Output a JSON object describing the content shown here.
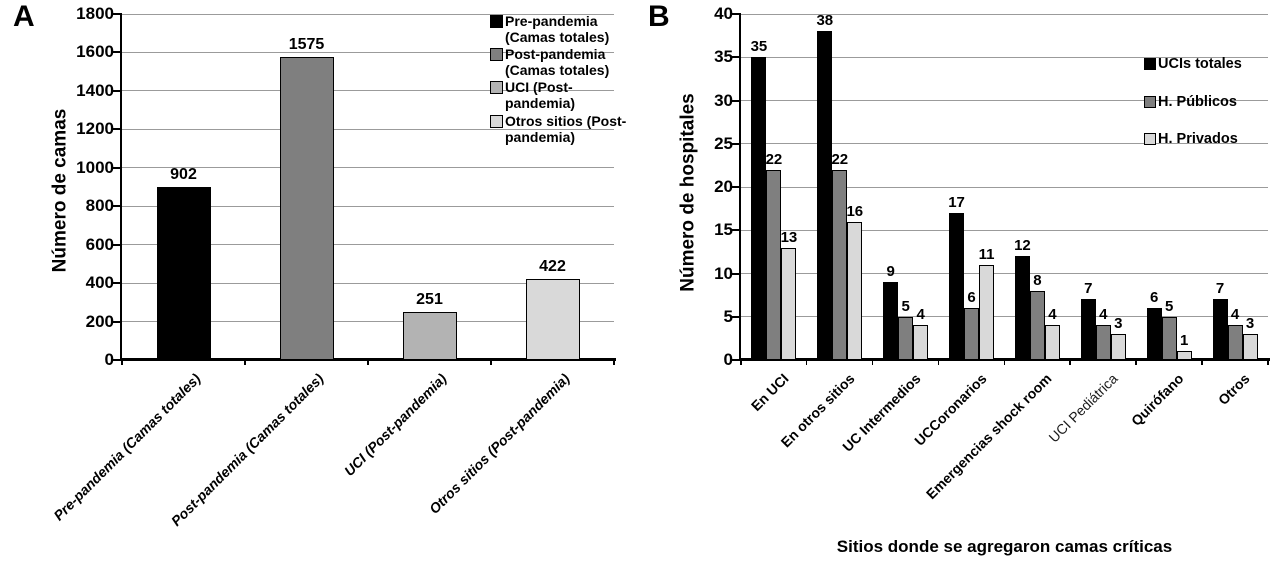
{
  "figure": {
    "background": "#ffffff",
    "text_color": "#000000",
    "gridline_color": "#9b9b9b",
    "axis_color": "#000000"
  },
  "chart_data": [
    {
      "type": "bar",
      "panel_label": "A",
      "title": "",
      "ylabel": "Número de camas",
      "xlabel": "",
      "ylim": [
        0,
        1800
      ],
      "yticks": [
        0,
        200,
        400,
        600,
        800,
        1000,
        1200,
        1400,
        1600,
        1800
      ],
      "grid": true,
      "legend_position": "top-right",
      "categories": [
        "Pre-pandemia (Camas totales)",
        "Post-pandemia (Camas totales)",
        "UCI (Post-pandemia)",
        "Otros sitios (Post-pandemia)"
      ],
      "values": [
        902,
        1575,
        251,
        422
      ],
      "bar_colors": [
        "#000000",
        "#7f7f7f",
        "#b3b3b3",
        "#d9d9d9"
      ],
      "legend": [
        {
          "label": "Pre-pandemia\n(Camas totales)",
          "color": "#000000"
        },
        {
          "label": "Post-pandemia\n(Camas totales)",
          "color": "#7f7f7f"
        },
        {
          "label": "UCI (Post-\npandemia)",
          "color": "#b3b3b3"
        },
        {
          "label": "Otros sitios (Post-\npandemia)",
          "color": "#d9d9d9"
        }
      ]
    },
    {
      "type": "bar",
      "panel_label": "B",
      "title": "",
      "ylabel": "Número de hospitales",
      "xlabel": "Sitios donde se agregaron camas críticas",
      "ylim": [
        0,
        40
      ],
      "yticks": [
        0,
        5,
        10,
        15,
        20,
        25,
        30,
        35,
        40
      ],
      "grid": true,
      "legend_position": "right",
      "categories": [
        "En UCI",
        "En otros sitios",
        "UC Intermedios",
        "UCCoronarios",
        "Emergencias shock room",
        "UCI Pediátrica",
        "Quirófano",
        "Otros"
      ],
      "muted_category": "UCI Pediátrica",
      "series": [
        {
          "name": "UCIs totales",
          "color": "#000000",
          "values": [
            35,
            38,
            9,
            17,
            12,
            7,
            6,
            7
          ]
        },
        {
          "name": "H. Públicos",
          "color": "#7f7f7f",
          "values": [
            22,
            22,
            5,
            6,
            8,
            4,
            5,
            4
          ]
        },
        {
          "name": "H. Privados",
          "color": "#d9d9d9",
          "values": [
            13,
            16,
            4,
            11,
            4,
            3,
            1,
            3
          ]
        }
      ]
    }
  ]
}
